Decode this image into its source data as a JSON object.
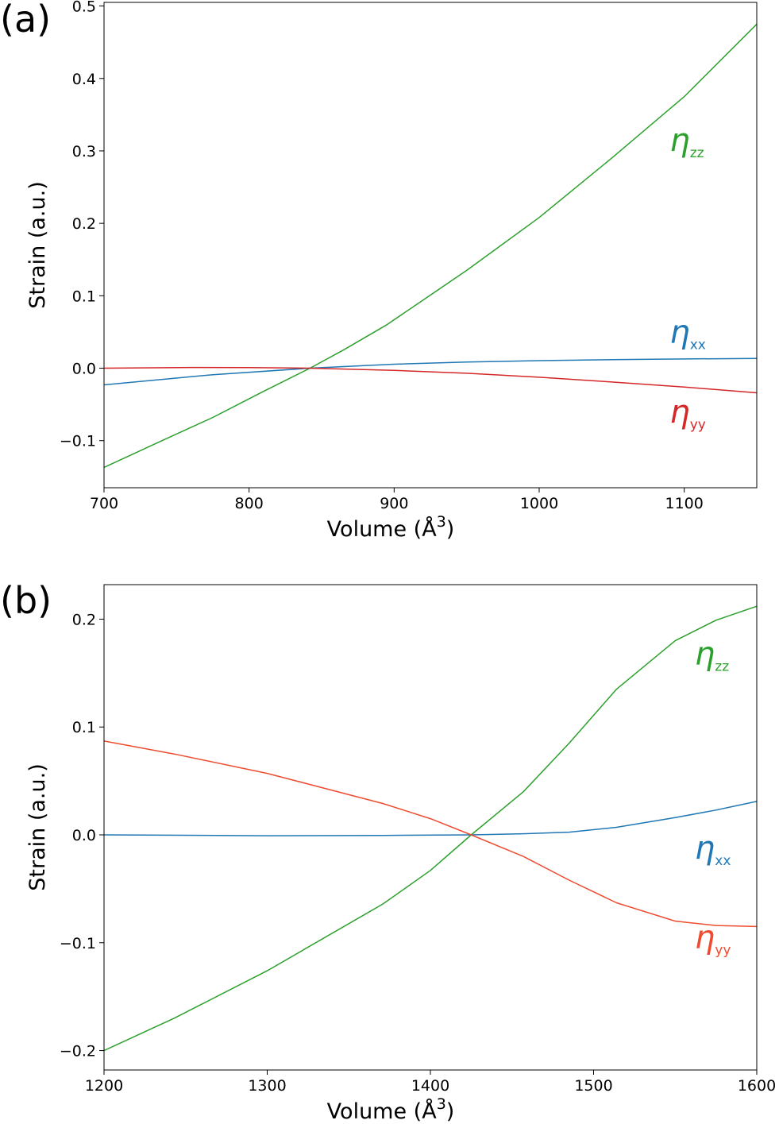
{
  "chart_data": [
    {
      "type": "line",
      "panel_label": "(a)",
      "xlabel": "Volume (Å",
      "xlabel_sup": "3",
      "xlabel_tail": ")",
      "ylabel": "Strain (a.u.)",
      "xlim": [
        700,
        1150
      ],
      "ylim": [
        -0.165,
        0.505
      ],
      "xticks": [
        700,
        800,
        900,
        1000,
        1100
      ],
      "xtick_labels": [
        "700",
        "800",
        "900",
        "1000",
        "1100"
      ],
      "yticks": [
        -0.1,
        0.0,
        0.1,
        0.2,
        0.3,
        0.4,
        0.5
      ],
      "ytick_labels": [
        "−0.1",
        "0.0",
        "0.1",
        "0.2",
        "0.3",
        "0.4",
        "0.5"
      ],
      "grid": false,
      "series": [
        {
          "name": "zz",
          "symbol": "η",
          "subscript": "zz",
          "color": "#2ca02c",
          "label_at": [
            1090,
            0.3
          ],
          "x": [
            700,
            740,
            775,
            810,
            842,
            865,
            895,
            950,
            1000,
            1050,
            1100,
            1150
          ],
          "y": [
            -0.137,
            -0.1,
            -0.068,
            -0.032,
            0.0,
            0.025,
            0.06,
            0.135,
            0.208,
            0.29,
            0.375,
            0.475
          ]
        },
        {
          "name": "xx",
          "symbol": "η",
          "subscript": "xx",
          "color": "#1f77b4",
          "label_at": [
            1090,
            0.035
          ],
          "x": [
            700,
            775,
            842,
            900,
            950,
            1000,
            1050,
            1100,
            1150
          ],
          "y": [
            -0.023,
            -0.009,
            0.0,
            0.0055,
            0.0085,
            0.0105,
            0.0118,
            0.0128,
            0.0135
          ]
        },
        {
          "name": "yy",
          "symbol": "η",
          "subscript": "yy",
          "color": "#d62728",
          "label_at": [
            1090,
            -0.075
          ],
          "x": [
            700,
            760,
            800,
            842,
            900,
            950,
            1000,
            1050,
            1100,
            1150
          ],
          "y": [
            0.0,
            0.001,
            0.0008,
            0.0,
            -0.003,
            -0.007,
            -0.0125,
            -0.019,
            -0.026,
            -0.034
          ]
        }
      ]
    },
    {
      "type": "line",
      "panel_label": "(b)",
      "xlabel": "Volume (Å",
      "xlabel_sup": "3",
      "xlabel_tail": ")",
      "ylabel": "Strain (a.u.)",
      "xlim": [
        1200,
        1600
      ],
      "ylim": [
        -0.218,
        0.232
      ],
      "xticks": [
        1200,
        1300,
        1400,
        1500,
        1600
      ],
      "xtick_labels": [
        "1200",
        "1300",
        "1400",
        "1500",
        "1600"
      ],
      "yticks": [
        -0.2,
        -0.1,
        0.0,
        0.1,
        0.2
      ],
      "ytick_labels": [
        "−0.2",
        "−0.1",
        "0.0",
        "0.1",
        "0.2"
      ],
      "grid": false,
      "series": [
        {
          "name": "zz",
          "symbol": "η",
          "subscript": "zz",
          "color": "#2ca02c",
          "label_at": [
            1562,
            0.158
          ],
          "x": [
            1200,
            1243,
            1300,
            1371,
            1400,
            1425,
            1457,
            1485,
            1514,
            1550,
            1575,
            1600
          ],
          "y": [
            -0.2,
            -0.17,
            -0.126,
            -0.064,
            -0.033,
            0.0,
            0.04,
            0.085,
            0.135,
            0.18,
            0.199,
            0.212
          ]
        },
        {
          "name": "xx",
          "symbol": "η",
          "subscript": "xx",
          "color": "#1f77b4",
          "label_at": [
            1562,
            -0.022
          ],
          "x": [
            1200,
            1300,
            1371,
            1425,
            1457,
            1485,
            1514,
            1550,
            1575,
            1600
          ],
          "y": [
            0.0,
            -0.0008,
            -0.0005,
            0.0,
            0.001,
            0.0025,
            0.007,
            0.016,
            0.023,
            0.031
          ]
        },
        {
          "name": "yy",
          "symbol": "η",
          "subscript": "yy",
          "color": "#ef4b2f",
          "label_at": [
            1562,
            -0.105
          ],
          "x": [
            1200,
            1243,
            1300,
            1371,
            1400,
            1425,
            1457,
            1485,
            1514,
            1550,
            1575,
            1600
          ],
          "y": [
            0.087,
            0.075,
            0.057,
            0.029,
            0.015,
            0.0,
            -0.02,
            -0.042,
            -0.063,
            -0.08,
            -0.084,
            -0.085
          ]
        }
      ]
    }
  ]
}
